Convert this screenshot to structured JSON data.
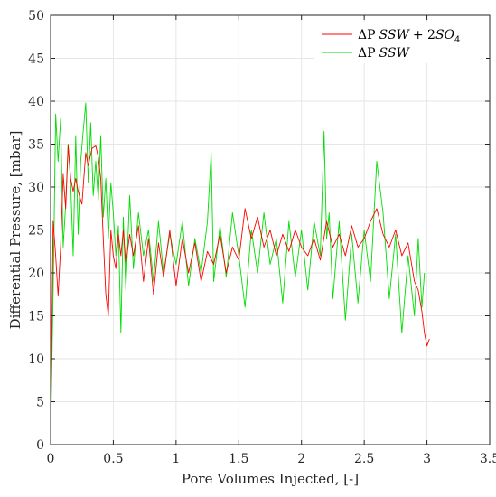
{
  "chart_data": {
    "type": "line",
    "title": "",
    "xlabel": "Pore Volumes Injected, [-]",
    "ylabel": "Differential Pressure, [mbar]",
    "xlim": [
      0,
      3.5
    ],
    "ylim": [
      0,
      50
    ],
    "xticks": [
      0,
      0.5,
      1,
      1.5,
      2,
      2.5,
      3,
      3.5
    ],
    "xtick_labels": [
      "0",
      "0.5",
      "1",
      "1.5",
      "2",
      "2.5",
      "3",
      "3.5"
    ],
    "yticks": [
      0,
      5,
      10,
      15,
      20,
      25,
      30,
      35,
      40,
      45,
      50
    ],
    "ytick_labels": [
      "0",
      "5",
      "10",
      "15",
      "20",
      "25",
      "30",
      "35",
      "40",
      "45",
      "50"
    ],
    "grid": true,
    "legend_position": "top-right",
    "legend": {
      "red_prefix": "ΔP",
      "red_italic": "SSW",
      "red_plus": "+ 2",
      "red_italic2": "SO",
      "red_sub": "4",
      "green_prefix": "ΔP",
      "green_italic": "SSW"
    },
    "series": [
      {
        "name": "ΔP SSW + 2SO4",
        "color": "#ff0000",
        "x": [
          0.0,
          0.02,
          0.04,
          0.06,
          0.08,
          0.1,
          0.12,
          0.14,
          0.16,
          0.18,
          0.2,
          0.22,
          0.25,
          0.28,
          0.3,
          0.33,
          0.36,
          0.38,
          0.4,
          0.42,
          0.44,
          0.46,
          0.48,
          0.5,
          0.52,
          0.54,
          0.56,
          0.58,
          0.6,
          0.63,
          0.66,
          0.7,
          0.74,
          0.78,
          0.82,
          0.86,
          0.9,
          0.95,
          1.0,
          1.05,
          1.1,
          1.15,
          1.2,
          1.25,
          1.3,
          1.35,
          1.4,
          1.45,
          1.5,
          1.55,
          1.6,
          1.65,
          1.7,
          1.75,
          1.8,
          1.85,
          1.9,
          1.95,
          2.0,
          2.05,
          2.1,
          2.15,
          2.2,
          2.25,
          2.3,
          2.35,
          2.4,
          2.45,
          2.5,
          2.55,
          2.6,
          2.65,
          2.7,
          2.75,
          2.8,
          2.85,
          2.9,
          2.93,
          2.96,
          2.98,
          3.0,
          3.02
        ],
        "y": [
          0.5,
          26.0,
          22.0,
          17.3,
          23.0,
          31.5,
          27.5,
          34.8,
          31.0,
          29.5,
          31.0,
          29.5,
          28.0,
          34.0,
          32.5,
          34.5,
          34.8,
          33.5,
          31.0,
          24.0,
          17.5,
          15.0,
          25.0,
          22.0,
          20.5,
          24.5,
          22.0,
          25.0,
          21.0,
          24.5,
          22.0,
          25.5,
          19.0,
          24.0,
          17.5,
          23.5,
          19.5,
          25.0,
          18.5,
          24.0,
          20.0,
          23.5,
          19.0,
          22.5,
          21.0,
          24.5,
          20.0,
          23.0,
          21.5,
          27.5,
          24.0,
          26.5,
          23.0,
          25.0,
          22.0,
          24.5,
          22.5,
          25.0,
          23.0,
          22.0,
          24.0,
          21.5,
          26.0,
          23.0,
          24.5,
          22.0,
          25.5,
          23.0,
          24.0,
          26.0,
          27.5,
          24.5,
          23.0,
          25.0,
          22.0,
          23.5,
          19.0,
          18.0,
          15.5,
          13.0,
          11.5,
          12.3
        ]
      },
      {
        "name": "ΔP SSW",
        "color": "#00dd00",
        "x": [
          0.0,
          0.02,
          0.04,
          0.06,
          0.08,
          0.1,
          0.12,
          0.14,
          0.16,
          0.18,
          0.2,
          0.22,
          0.24,
          0.26,
          0.28,
          0.3,
          0.32,
          0.34,
          0.36,
          0.38,
          0.4,
          0.42,
          0.44,
          0.46,
          0.48,
          0.5,
          0.52,
          0.54,
          0.56,
          0.58,
          0.6,
          0.63,
          0.66,
          0.7,
          0.74,
          0.78,
          0.82,
          0.86,
          0.9,
          0.95,
          1.0,
          1.05,
          1.1,
          1.15,
          1.2,
          1.25,
          1.28,
          1.3,
          1.35,
          1.4,
          1.45,
          1.5,
          1.55,
          1.6,
          1.65,
          1.7,
          1.75,
          1.8,
          1.85,
          1.9,
          1.95,
          2.0,
          2.05,
          2.1,
          2.15,
          2.18,
          2.2,
          2.22,
          2.25,
          2.3,
          2.35,
          2.4,
          2.45,
          2.5,
          2.55,
          2.6,
          2.65,
          2.7,
          2.75,
          2.8,
          2.85,
          2.9,
          2.93,
          2.96,
          2.98
        ],
        "y": [
          1.0,
          17.5,
          38.5,
          33.0,
          38.0,
          23.0,
          28.0,
          35.0,
          30.5,
          22.0,
          36.0,
          24.5,
          33.0,
          36.5,
          39.8,
          30.5,
          37.5,
          29.0,
          33.0,
          28.5,
          36.0,
          26.5,
          31.0,
          24.0,
          30.5,
          27.0,
          22.0,
          25.5,
          13.0,
          26.5,
          18.0,
          29.0,
          20.5,
          27.0,
          22.0,
          25.0,
          19.0,
          26.0,
          20.0,
          24.5,
          21.0,
          26.0,
          18.5,
          24.0,
          20.0,
          26.0,
          34.0,
          19.0,
          25.5,
          19.5,
          27.0,
          22.0,
          16.0,
          25.0,
          20.0,
          27.0,
          21.0,
          24.0,
          16.5,
          26.0,
          19.5,
          25.0,
          18.0,
          26.0,
          22.0,
          36.5,
          24.0,
          27.0,
          17.0,
          26.0,
          14.5,
          24.5,
          16.5,
          25.0,
          19.0,
          33.0,
          27.0,
          17.0,
          24.5,
          13.0,
          22.0,
          15.0,
          24.0,
          16.0,
          20.0
        ]
      }
    ]
  }
}
